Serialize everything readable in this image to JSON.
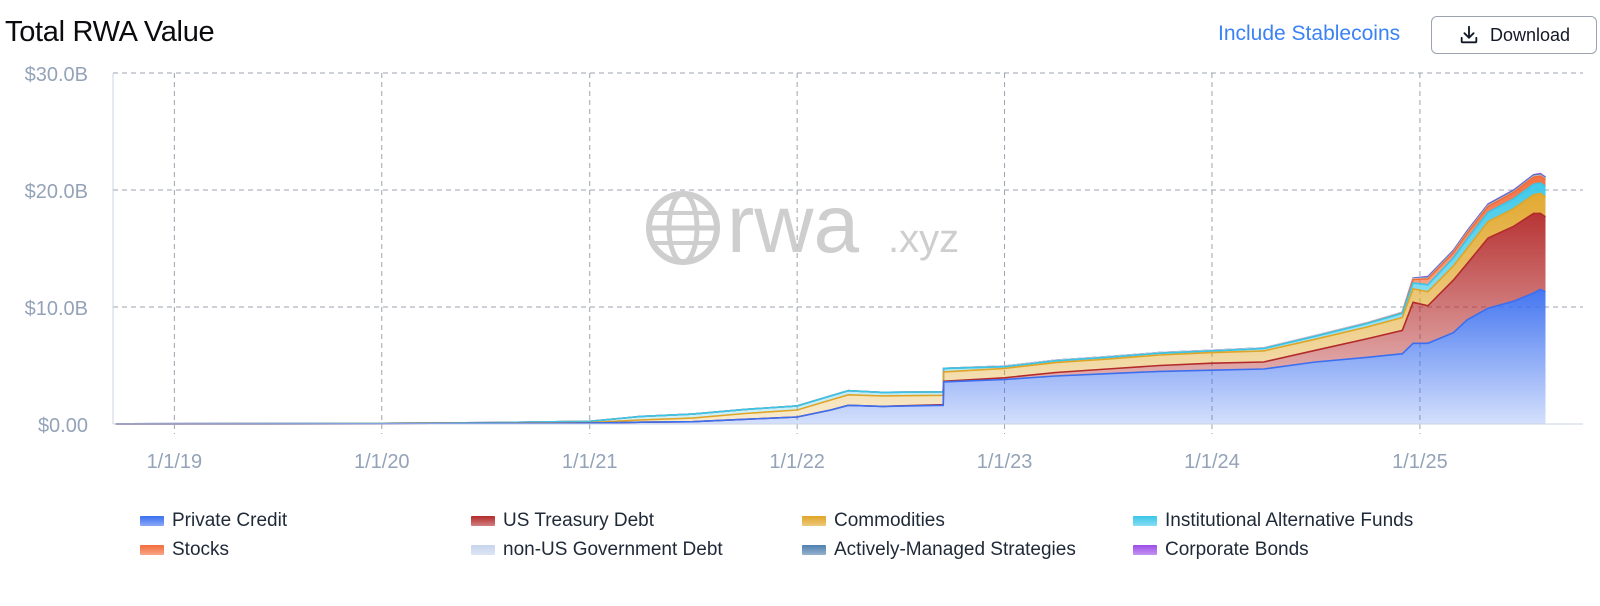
{
  "header": {
    "title": "Total RWA Value",
    "toggle_label": "Include Stablecoins",
    "download_label": "Download"
  },
  "watermark": {
    "brand": "rwa",
    "suffix": ".xyz"
  },
  "colors": {
    "accent": "#3b82f6",
    "private_credit": "#3b6ff0",
    "us_treasury": "#b42a2a",
    "commodities": "#e0a526",
    "institutional_alt": "#38c6e8",
    "stocks": "#f26b3a",
    "non_us_gov": "#c7d4ec",
    "actively_managed": "#4f7fae",
    "corporate_bonds": "#9b4de8"
  },
  "chart_data": {
    "type": "area",
    "stacked": true,
    "title": "Total RWA Value",
    "x_ticks": [
      "1/1/19",
      "1/1/20",
      "1/1/21",
      "1/1/22",
      "1/1/23",
      "1/1/24",
      "1/1/25"
    ],
    "y_ticks": [
      "$0.00",
      "$10.0B",
      "$20.0B",
      "$30.0B"
    ],
    "ylim": [
      0,
      30
    ],
    "xlim": [
      "2018-09-15",
      "2025-10-15"
    ],
    "grid": true,
    "legend_position": "bottom",
    "x": [
      "2018-09-20",
      "2019-06-01",
      "2020-01-01",
      "2020-07-01",
      "2021-01-01",
      "2021-04-01",
      "2021-07-01",
      "2021-10-01",
      "2022-01-01",
      "2022-03-01",
      "2022-04-01",
      "2022-06-01",
      "2022-09-15",
      "2022-09-16",
      "2023-01-01",
      "2023-04-01",
      "2023-07-01",
      "2023-10-01",
      "2024-01-01",
      "2024-04-01",
      "2024-07-01",
      "2024-10-01",
      "2024-12-01",
      "2024-12-20",
      "2025-01-15",
      "2025-03-01",
      "2025-03-25",
      "2025-05-01",
      "2025-06-15",
      "2025-07-20",
      "2025-08-01",
      "2025-08-10"
    ],
    "series": [
      {
        "name": "Private Credit",
        "key": "private_credit",
        "values": [
          0,
          0.01,
          0.02,
          0.03,
          0.08,
          0.15,
          0.2,
          0.4,
          0.6,
          1.2,
          1.6,
          1.5,
          1.6,
          3.6,
          3.8,
          4.1,
          4.3,
          4.5,
          4.6,
          4.7,
          5.3,
          5.7,
          6.0,
          6.9,
          6.9,
          7.8,
          8.9,
          9.9,
          10.5,
          11.2,
          11.5,
          11.3
        ]
      },
      {
        "name": "US Treasury Debt",
        "key": "us_treasury",
        "values": [
          0,
          0,
          0,
          0,
          0,
          0,
          0,
          0,
          0,
          0,
          0,
          0,
          0.05,
          0.05,
          0.15,
          0.3,
          0.4,
          0.5,
          0.6,
          0.6,
          1.0,
          1.6,
          2.0,
          3.5,
          3.2,
          4.5,
          4.8,
          6.0,
          6.4,
          6.8,
          6.5,
          6.4
        ]
      },
      {
        "name": "Commodities",
        "key": "commodities",
        "values": [
          0,
          0,
          0.01,
          0.03,
          0.05,
          0.2,
          0.3,
          0.5,
          0.6,
          0.85,
          0.9,
          0.9,
          0.8,
          0.8,
          0.8,
          0.85,
          0.85,
          0.9,
          0.9,
          0.95,
          0.95,
          1.0,
          1.1,
          1.15,
          1.2,
          1.2,
          1.3,
          1.4,
          1.5,
          1.6,
          1.7,
          1.7
        ]
      },
      {
        "name": "Institutional Alternative Funds",
        "key": "institutional_alt",
        "values": [
          0.02,
          0.02,
          0.03,
          0.05,
          0.1,
          0.3,
          0.35,
          0.35,
          0.35,
          0.35,
          0.35,
          0.3,
          0.3,
          0.3,
          0.15,
          0.15,
          0.15,
          0.15,
          0.15,
          0.2,
          0.25,
          0.3,
          0.35,
          0.5,
          0.6,
          0.7,
          0.8,
          0.8,
          0.85,
          0.9,
          0.9,
          0.9
        ]
      },
      {
        "name": "Stocks",
        "key": "stocks",
        "values": [
          0,
          0,
          0,
          0,
          0,
          0,
          0,
          0,
          0,
          0,
          0,
          0,
          0,
          0,
          0,
          0,
          0,
          0,
          0,
          0,
          0.01,
          0.02,
          0.05,
          0.3,
          0.5,
          0.45,
          0.5,
          0.5,
          0.55,
          0.6,
          0.6,
          0.6
        ]
      },
      {
        "name": "non-US Government Debt",
        "key": "non_us_gov",
        "values": [
          0,
          0,
          0,
          0,
          0,
          0,
          0,
          0,
          0,
          0,
          0,
          0,
          0,
          0,
          0.05,
          0.05,
          0.05,
          0.05,
          0.05,
          0.05,
          0.05,
          0.05,
          0.05,
          0.05,
          0.05,
          0.05,
          0.05,
          0.05,
          0.05,
          0.05,
          0.05,
          0.05
        ]
      },
      {
        "name": "Actively-Managed Strategies",
        "key": "actively_managed",
        "values": [
          0,
          0,
          0,
          0,
          0,
          0,
          0,
          0,
          0,
          0,
          0,
          0,
          0,
          0,
          0,
          0,
          0,
          0,
          0,
          0,
          0,
          0,
          0,
          0.05,
          0.1,
          0.1,
          0.1,
          0.1,
          0.1,
          0.1,
          0.1,
          0.1
        ]
      },
      {
        "name": "Corporate Bonds",
        "key": "corporate_bonds",
        "values": [
          0,
          0,
          0,
          0,
          0,
          0,
          0,
          0,
          0,
          0,
          0,
          0,
          0,
          0,
          0,
          0,
          0,
          0,
          0,
          0,
          0,
          0,
          0,
          0.02,
          0.05,
          0.05,
          0.05,
          0.05,
          0.05,
          0.05,
          0.05,
          0.05
        ]
      }
    ]
  }
}
